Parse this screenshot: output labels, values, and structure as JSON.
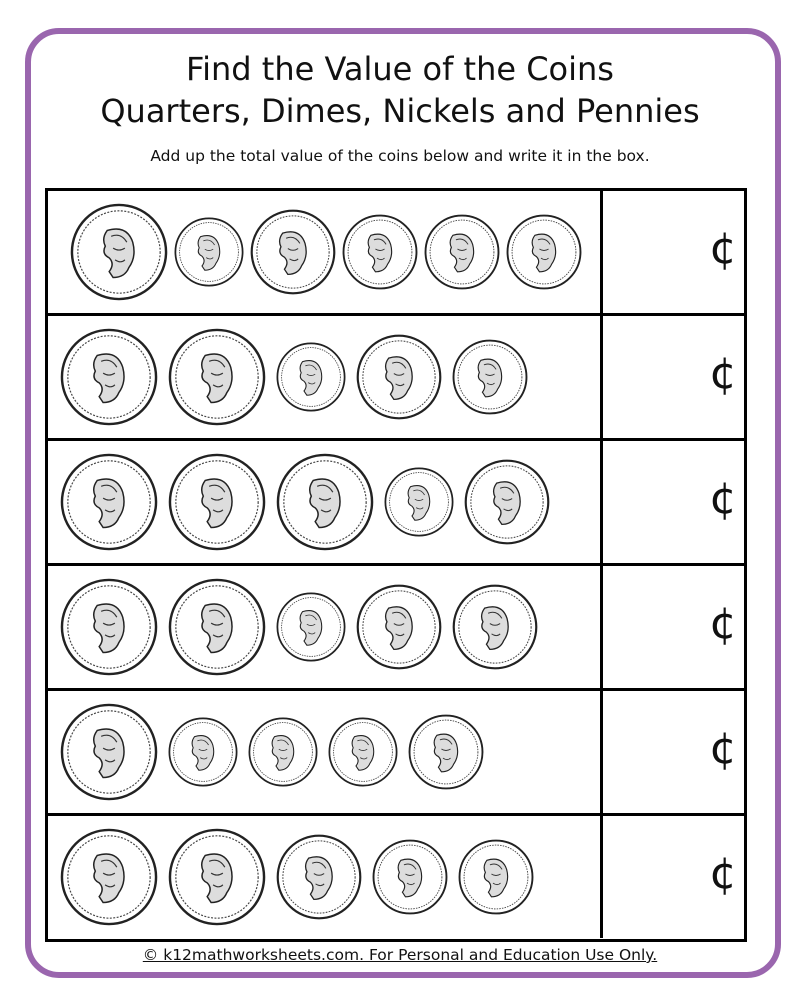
{
  "title_line1": "Find the Value of the Coins",
  "title_line2": "Quarters, Dimes, Nickels and Pennies",
  "instructions": "Add up the total value of the coins below and write it in the box.",
  "cent_symbol": "¢",
  "footer": "© k12mathworksheets.com. For Personal and Education Use Only.",
  "border_color": "#9a66ae",
  "rows": [
    {
      "coins": [
        "quarter",
        "dime",
        "nickel",
        "penny",
        "penny",
        "penny"
      ],
      "answer": ""
    },
    {
      "coins": [
        "quarter",
        "quarter",
        "dime",
        "nickel",
        "penny"
      ],
      "answer": ""
    },
    {
      "coins": [
        "quarter",
        "quarter",
        "quarter",
        "dime",
        "nickel"
      ],
      "answer": ""
    },
    {
      "coins": [
        "quarter",
        "quarter",
        "dime",
        "nickel",
        "nickel"
      ],
      "answer": ""
    },
    {
      "coins": [
        "quarter",
        "dime",
        "dime",
        "dime",
        "penny"
      ],
      "answer": ""
    },
    {
      "coins": [
        "quarter",
        "quarter",
        "nickel",
        "penny",
        "penny"
      ],
      "answer": ""
    }
  ]
}
